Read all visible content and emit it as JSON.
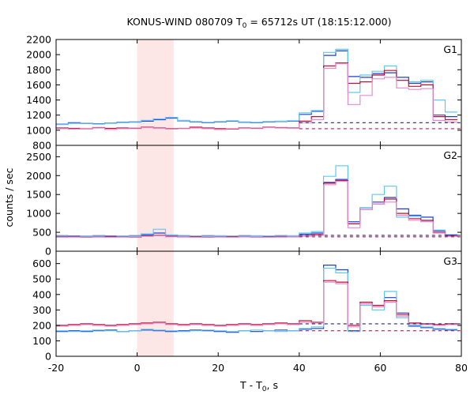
{
  "chart_data": {
    "type": "line",
    "title": "KONUS-WIND 080709 T",
    "title_sub": "0",
    "title_rest": " = 65712s UT (18:15:12.000)",
    "xlabel": "T - T",
    "xlabel_sub": "0",
    "xlabel_rest": ", s",
    "ylabel": "counts / sec",
    "xlim": [
      -20,
      80
    ],
    "x_ticks": [
      "-20",
      "0",
      "20",
      "40",
      "60",
      "80"
    ],
    "x_tick_values": [
      -20,
      0,
      20,
      40,
      60,
      80
    ],
    "shaded_interval": [
      0,
      9
    ],
    "colors": {
      "dark_blue": "#1f3fcf",
      "light_blue": "#5fc8f0",
      "dark_red": "#c0102c",
      "pink": "#e58ad0",
      "shade": "#fde6e6",
      "dashed_blue": "#23237a",
      "dashed_red": "#b01c48"
    },
    "panels": [
      {
        "label": "G1",
        "ylim": [
          800,
          2200
        ],
        "y_ticks": [
          "800",
          "1000",
          "1200",
          "1400",
          "1600",
          "1800",
          "2000",
          "2200"
        ],
        "y_tick_values": [
          800,
          1000,
          1200,
          1400,
          1600,
          1800,
          2000,
          2200
        ],
        "background_levels": [
          1100,
          1020
        ],
        "bin_edges": [
          -20,
          -17,
          -14,
          -11,
          -8,
          -5,
          -2,
          1,
          4,
          7,
          10,
          13,
          16,
          19,
          22,
          25,
          28,
          31,
          34,
          37,
          40,
          43,
          46,
          49,
          52,
          55,
          58,
          61,
          64,
          67,
          70,
          73,
          76,
          79
        ],
        "series": [
          {
            "color": "dark_blue",
            "values": [
              1080,
              1100,
              1090,
              1085,
              1095,
              1105,
              1110,
              1120,
              1140,
              1160,
              1125,
              1110,
              1100,
              1110,
              1120,
              1105,
              1100,
              1110,
              1115,
              1120,
              1210,
              1250,
              1990,
              2050,
              1710,
              1700,
              1750,
              1760,
              1700,
              1620,
              1640,
              1200,
              1180
            ]
          },
          {
            "color": "light_blue",
            "values": [
              1075,
              1090,
              1095,
              1080,
              1090,
              1100,
              1105,
              1130,
              1150,
              1170,
              1130,
              1115,
              1105,
              1115,
              1125,
              1110,
              1105,
              1115,
              1120,
              1125,
              1230,
              1260,
              2030,
              2070,
              1500,
              1730,
              1780,
              1850,
              1660,
              1640,
              1660,
              1400,
              1240
            ]
          },
          {
            "color": "dark_red",
            "values": [
              1030,
              1025,
              1020,
              1035,
              1025,
              1030,
              1025,
              1040,
              1030,
              1020,
              1025,
              1040,
              1030,
              1020,
              1015,
              1030,
              1025,
              1040,
              1035,
              1030,
              1120,
              1180,
              1850,
              1890,
              1620,
              1640,
              1730,
              1790,
              1660,
              1580,
              1600,
              1180,
              1140
            ]
          },
          {
            "color": "pink",
            "values": [
              1020,
              1015,
              1025,
              1030,
              1010,
              1020,
              1030,
              1035,
              1025,
              1015,
              1020,
              1030,
              1020,
              1010,
              1020,
              1025,
              1030,
              1035,
              1030,
              1025,
              1100,
              1140,
              1820,
              1880,
              1340,
              1460,
              1680,
              1700,
              1560,
              1540,
              1550,
              1130,
              1110
            ]
          }
        ]
      },
      {
        "label": "G2",
        "ylim": [
          0,
          2800
        ],
        "y_ticks": [
          "0",
          "500",
          "1000",
          "1500",
          "2000",
          "2500"
        ],
        "y_tick_values": [
          0,
          500,
          1000,
          1500,
          2000,
          2500
        ],
        "background_levels": [
          420,
          380
        ],
        "bin_edges": [
          -20,
          -17,
          -14,
          -11,
          -8,
          -5,
          -2,
          1,
          4,
          7,
          10,
          13,
          16,
          19,
          22,
          25,
          28,
          31,
          34,
          37,
          40,
          43,
          46,
          49,
          52,
          55,
          58,
          61,
          64,
          67,
          70,
          73,
          76,
          79
        ],
        "series": [
          {
            "color": "dark_blue",
            "values": [
              410,
              405,
              400,
              410,
              405,
              400,
              410,
              430,
              480,
              420,
              410,
              400,
              410,
              405,
              400,
              410,
              405,
              400,
              410,
              405,
              450,
              480,
              1820,
              1900,
              780,
              1150,
              1300,
              1420,
              1120,
              950,
              900,
              540,
              430
            ]
          },
          {
            "color": "light_blue",
            "values": [
              400,
              395,
              405,
              400,
              395,
              405,
              400,
              460,
              580,
              430,
              415,
              405,
              400,
              410,
              405,
              400,
              410,
              405,
              400,
              410,
              480,
              520,
              1980,
              2260,
              720,
              1150,
              1500,
              1720,
              900,
              920,
              800,
              560,
              400
            ]
          },
          {
            "color": "dark_red",
            "values": [
              380,
              385,
              375,
              380,
              385,
              380,
              375,
              400,
              420,
              390,
              380,
              385,
              375,
              380,
              385,
              380,
              375,
              380,
              385,
              380,
              410,
              440,
              1800,
              1870,
              730,
              1100,
              1250,
              1380,
              1000,
              860,
              820,
              500,
              400
            ]
          },
          {
            "color": "pink",
            "values": [
              370,
              375,
              380,
              375,
              370,
              375,
              380,
              390,
              410,
              380,
              375,
              370,
              380,
              375,
              370,
              380,
              375,
              370,
              375,
              380,
              400,
              420,
              1760,
              1850,
              620,
              1100,
              1250,
              1300,
              950,
              820,
              780,
              480,
              390
            ]
          }
        ]
      },
      {
        "label": "G3",
        "ylim": [
          0,
          680
        ],
        "y_ticks": [
          "0",
          "100",
          "200",
          "300",
          "400",
          "500",
          "600"
        ],
        "y_tick_values": [
          0,
          100,
          200,
          300,
          400,
          500,
          600
        ],
        "background_levels": [
          210,
          165
        ],
        "bin_edges": [
          -20,
          -17,
          -14,
          -11,
          -8,
          -5,
          -2,
          1,
          4,
          7,
          10,
          13,
          16,
          19,
          22,
          25,
          28,
          31,
          34,
          37,
          40,
          43,
          46,
          49,
          52,
          55,
          58,
          61,
          64,
          67,
          70,
          73,
          76,
          79
        ],
        "series": [
          {
            "color": "dark_blue",
            "values": [
              160,
              165,
              160,
              165,
              170,
              160,
              165,
              170,
              165,
              160,
              165,
              170,
              165,
              160,
              155,
              165,
              160,
              165,
              170,
              165,
              175,
              180,
              590,
              560,
              165,
              340,
              320,
              380,
              280,
              195,
              185,
              175,
              170
            ]
          },
          {
            "color": "light_blue",
            "values": [
              165,
              160,
              165,
              170,
              165,
              160,
              165,
              175,
              170,
              165,
              160,
              165,
              170,
              165,
              160,
              165,
              170,
              165,
              160,
              165,
              180,
              190,
              570,
              540,
              160,
              330,
              300,
              420,
              250,
              200,
              190,
              180,
              175
            ]
          },
          {
            "color": "dark_red",
            "values": [
              200,
              205,
              210,
              205,
              200,
              205,
              210,
              215,
              220,
              210,
              205,
              210,
              205,
              200,
              205,
              210,
              205,
              210,
              215,
              210,
              230,
              220,
              490,
              480,
              200,
              350,
              330,
              360,
              270,
              215,
              210,
              205,
              210
            ]
          },
          {
            "color": "pink",
            "values": [
              195,
              200,
              205,
              200,
              195,
              200,
              205,
              210,
              215,
              205,
              200,
              205,
              200,
              195,
              200,
              205,
              200,
              205,
              210,
              205,
              220,
              215,
              480,
              470,
              190,
              340,
              320,
              350,
              260,
              210,
              205,
              200,
              205
            ]
          }
        ]
      }
    ]
  }
}
